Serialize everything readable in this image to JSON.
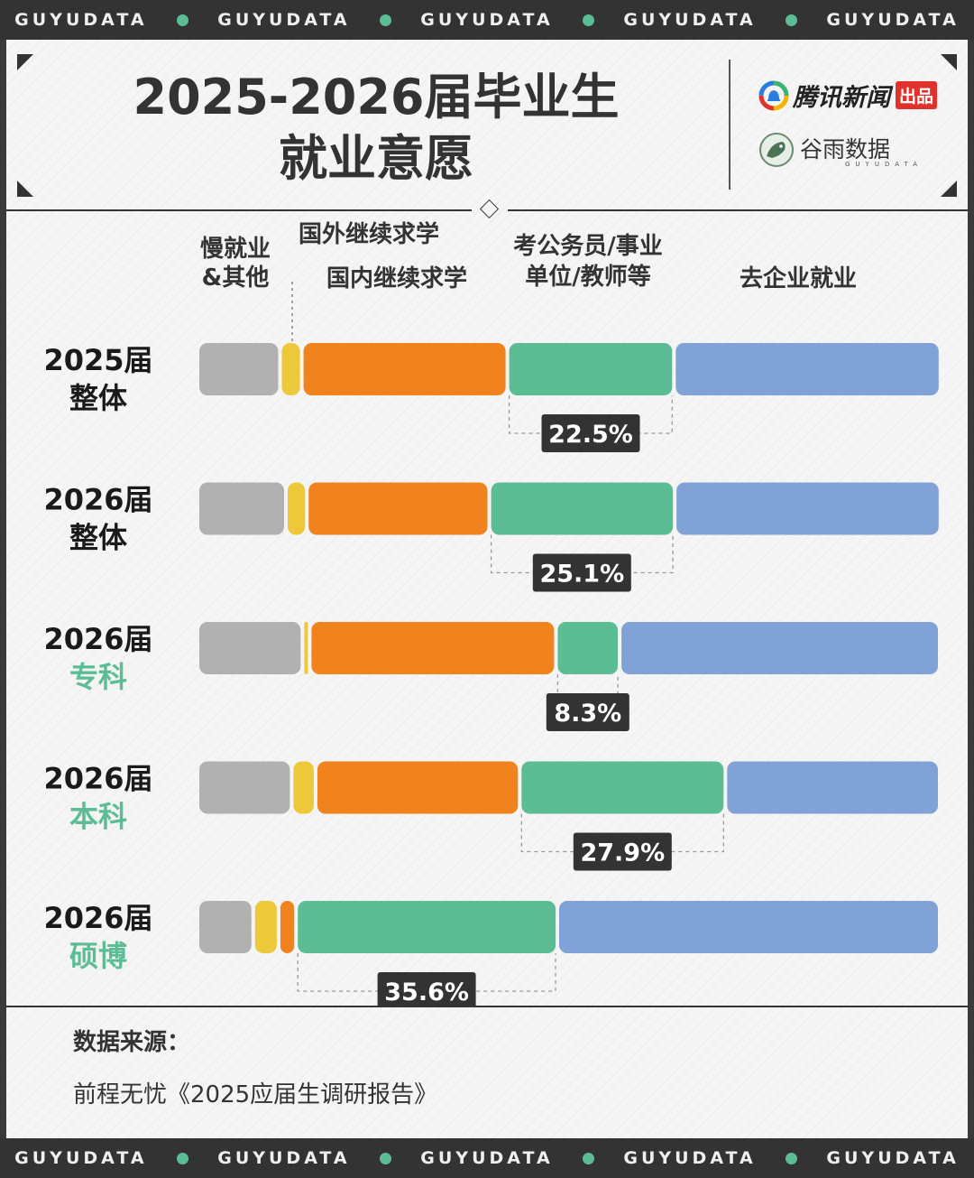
{
  "banner": {
    "words": [
      "GUYUDATA",
      "GUYUDATA",
      "GUYUDATA",
      "GUYUDATA",
      "GUYUDATA"
    ]
  },
  "header": {
    "title_line1": "2025-2026届毕业生",
    "title_line2": "就业意愿"
  },
  "logos": {
    "tencent_text": "腾讯新闻",
    "tencent_badge": "出品",
    "guyu_text": "谷雨数据",
    "guyu_sub": "GUYUDATA"
  },
  "colors": {
    "slow_other": "#b1b1b1",
    "abroad": "#edc83a",
    "domestic": "#f0831e",
    "civil": "#5cbd95",
    "enterprise": "#81a2d6",
    "dark": "#333333",
    "row_sub_accent": "#5cbd95"
  },
  "chart_data": {
    "type": "bar",
    "orientation": "horizontal",
    "stacked": true,
    "title": "2025-2026届毕业生就业意愿",
    "legend": [
      {
        "lines": [
          "慢就业",
          "&其他"
        ],
        "key": "slow_other"
      },
      {
        "lines": [
          "国外继续求学"
        ],
        "key": "abroad"
      },
      {
        "lines": [
          "国内继续求学"
        ],
        "key": "domestic"
      },
      {
        "lines": [
          "考公务员/事业",
          "单位/教师等"
        ],
        "key": "civil"
      },
      {
        "lines": [
          "去企业就业"
        ],
        "key": "enterprise"
      }
    ],
    "series_order": [
      "slow_other",
      "abroad",
      "domestic",
      "civil",
      "enterprise"
    ],
    "rows": [
      {
        "label": "2025届",
        "sublabel": "整体",
        "sub_color": "dark",
        "values": [
          10.9,
          2.5,
          27.9,
          22.5,
          36.3
        ],
        "highlight": "22.5%"
      },
      {
        "label": "2026届",
        "sublabel": "整体",
        "sub_color": "dark",
        "values": [
          11.7,
          2.4,
          24.7,
          25.1,
          36.2
        ],
        "highlight": "25.1%"
      },
      {
        "label": "2026届",
        "sublabel": "专科",
        "sub_color": "accent",
        "values": [
          14.0,
          0.5,
          33.5,
          8.3,
          43.7
        ],
        "highlight": "8.3%"
      },
      {
        "label": "2026届",
        "sublabel": "本科",
        "sub_color": "accent",
        "values": [
          12.5,
          2.8,
          27.7,
          27.9,
          29.1
        ],
        "highlight": "27.9%"
      },
      {
        "label": "2026届",
        "sublabel": "硕博",
        "sub_color": "accent",
        "values": [
          7.2,
          3.0,
          1.9,
          35.6,
          52.3
        ],
        "highlight": "35.6%"
      }
    ]
  },
  "source": {
    "label": "数据来源：",
    "text": "前程无忧《2025应届生调研报告》"
  }
}
